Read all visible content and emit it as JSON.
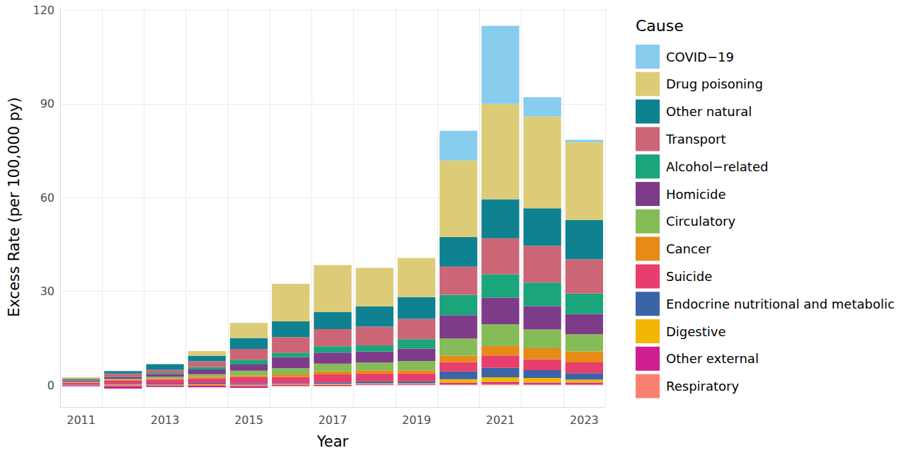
{
  "chart_data": {
    "type": "bar",
    "stacked": true,
    "x_label": "Year",
    "y_label": "Excess Rate (per 100,000 py)",
    "legend_title": "Cause",
    "legend": "right",
    "grid": true,
    "categories": [
      "2011",
      null,
      "2013",
      null,
      "2015",
      null,
      "2017",
      null,
      "2019",
      null,
      "2021",
      null,
      "2023"
    ],
    "ylim": [
      -7,
      121
    ],
    "yticks": [
      0,
      30,
      60,
      90,
      120
    ],
    "series": [
      {
        "name": "COVID−19",
        "color": "#88CCEE",
        "values": [
          0,
          0,
          0,
          0,
          0,
          0,
          0,
          0,
          0,
          9.5,
          25,
          6.2,
          0.7
        ]
      },
      {
        "name": "Drug poisoning",
        "color": "#DDCC77",
        "values": [
          0.4,
          0,
          0,
          1.5,
          4.8,
          12,
          15,
          12.3,
          12.5,
          24.5,
          30.5,
          29.4,
          25
        ]
      },
      {
        "name": "Other natural",
        "color": "#0F8291",
        "values": [
          0.2,
          0.8,
          1.8,
          1.8,
          3.5,
          5,
          5.5,
          6.5,
          7,
          9.5,
          12.5,
          12,
          12.5
        ]
      },
      {
        "name": "Transport",
        "color": "#CC6677",
        "values": [
          0.3,
          1,
          1,
          1.8,
          3.5,
          5,
          5.5,
          6,
          6.5,
          9,
          11.5,
          11.8,
          11
        ]
      },
      {
        "name": "Alcohol−related",
        "color": "#1AA57B",
        "values": [
          0.1,
          0.2,
          0.4,
          0.8,
          1.5,
          1.5,
          2,
          2,
          3,
          6.5,
          7.5,
          7.5,
          6.5
        ]
      },
      {
        "name": "Homicide",
        "color": "#7E3B8A",
        "values": [
          0.4,
          0.5,
          0.8,
          1.5,
          2,
          3.5,
          3.5,
          3.5,
          4,
          7.5,
          8.5,
          7.5,
          6.5
        ]
      },
      {
        "name": "Circulatory",
        "color": "#86BC57",
        "values": [
          0.2,
          0.3,
          0.5,
          0.8,
          1.5,
          2,
          2.5,
          2.5,
          3,
          5.5,
          7,
          6,
          5.5
        ]
      },
      {
        "name": "Cancer",
        "color": "#E78A17",
        "values": [
          0.2,
          0.3,
          0.4,
          0.5,
          0.5,
          0.8,
          1,
          1,
          1,
          2,
          3,
          3.5,
          3.5
        ]
      },
      {
        "name": "Suicide",
        "color": "#E63E6D",
        "values": [
          0.5,
          1,
          1.3,
          1.5,
          2,
          2,
          2.5,
          2.5,
          2.5,
          3,
          4,
          3.5,
          3.5
        ]
      },
      {
        "name": "Endocrine nutritional and metabolic",
        "color": "#3B63A8",
        "values": [
          0.1,
          0.2,
          0.3,
          0.4,
          0.4,
          0.3,
          0.5,
          0.6,
          0.6,
          2.5,
          3,
          2.5,
          2
        ]
      },
      {
        "name": "Digestive",
        "color": "#F2B705",
        "values": [
          0.1,
          0.2,
          0.2,
          0.3,
          0.2,
          0.2,
          0.3,
          0.3,
          0.3,
          1.2,
          1.5,
          1.5,
          1
        ]
      },
      {
        "name": "Other external",
        "color": "#CF1E8F",
        "values": [
          -0.3,
          -0.8,
          -0.4,
          -0.5,
          -0.6,
          -0.3,
          -0.3,
          0.2,
          0.2,
          0.4,
          0.5,
          0.5,
          0.5
        ]
      },
      {
        "name": "Respiratory",
        "color": "#FA8072",
        "values": [
          -0.1,
          -0.3,
          -0.2,
          -0.2,
          -0.3,
          0.1,
          0.1,
          0.1,
          0.1,
          0.3,
          0.5,
          0.3,
          0.3
        ]
      }
    ]
  }
}
